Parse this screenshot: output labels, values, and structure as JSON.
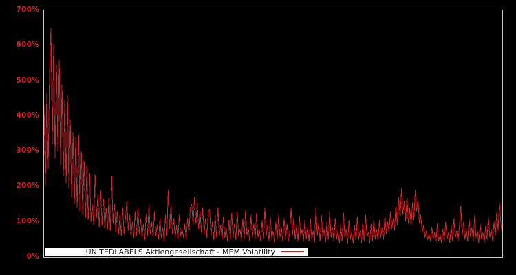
{
  "chart": {
    "colors": {
      "background": "#000000",
      "series": "#d4222b",
      "tick_label": "#d4222b",
      "axis_border": "#c9c9c9",
      "legend_bg": "#ffffff",
      "legend_text": "#141414"
    }
  },
  "chart_data": {
    "type": "line",
    "title": "",
    "xlabel": "",
    "ylabel": "",
    "grid": false,
    "legend_position": "bottom-inside",
    "ylim": [
      0,
      700
    ],
    "ytick_values": [
      0,
      100,
      200,
      300,
      400,
      500,
      600,
      700
    ],
    "ytick_labels": [
      "0%",
      "100%",
      "200%",
      "300%",
      "400%",
      "500%",
      "600%",
      "700%"
    ],
    "xtick_labels": [],
    "series": [
      {
        "name": "UNITEDLABELS Aktiengesellschaft - MEM Volatility",
        "unit": "%",
        "values": [
          430,
          205,
          465,
          250,
          520,
          650,
          320,
          605,
          280,
          545,
          300,
          560,
          260,
          490,
          230,
          445,
          210,
          460,
          195,
          390,
          170,
          355,
          150,
          340,
          140,
          350,
          130,
          300,
          120,
          275,
          110,
          260,
          105,
          240,
          100,
          150,
          90,
          235,
          110,
          175,
          85,
          190,
          90,
          165,
          80,
          140,
          80,
          170,
          75,
          230,
          95,
          150,
          70,
          130,
          65,
          120,
          60,
          140,
          65,
          110,
          160,
          75,
          120,
          60,
          100,
          55,
          130,
          60,
          140,
          65,
          110,
          55,
          95,
          50,
          120,
          60,
          150,
          65,
          100,
          55,
          130,
          60,
          90,
          50,
          110,
          55,
          85,
          45,
          120,
          60,
          190,
          80,
          150,
          65,
          110,
          55,
          90,
          50,
          120,
          60,
          80,
          55,
          95,
          50,
          110,
          70,
          140,
          150,
          90,
          170,
          95,
          155,
          80,
          130,
          70,
          140,
          65,
          110,
          55,
          130,
          135,
          60,
          100,
          50,
          120,
          55,
          140,
          60,
          90,
          50,
          115,
          55,
          85,
          45,
          105,
          50,
          125,
          55,
          95,
          50,
          130,
          60,
          80,
          45,
          110,
          50,
          135,
          60,
          85,
          45,
          120,
          55,
          95,
          50,
          125,
          55,
          80,
          45,
          105,
          50,
          140,
          60,
          90,
          45,
          115,
          50,
          75,
          40,
          100,
          50,
          120,
          55,
          85,
          45,
          110,
          50,
          95,
          45,
          70,
          140,
          60,
          115,
          50,
          90,
          45,
          120,
          55,
          80,
          45,
          105,
          50,
          85,
          45,
          110,
          50,
          75,
          40,
          140,
          60,
          95,
          45,
          120,
          55,
          80,
          40,
          100,
          50,
          130,
          55,
          85,
          45,
          110,
          50,
          75,
          40,
          95,
          45,
          125,
          55,
          80,
          40,
          105,
          50,
          70,
          40,
          90,
          45,
          115,
          50,
          75,
          40,
          100,
          45,
          120,
          55,
          70,
          40,
          95,
          45,
          110,
          50,
          80,
          45,
          105,
          55,
          85,
          50,
          120,
          65,
          100,
          70,
          130,
          80,
          110,
          75,
          150,
          90,
          170,
          110,
          195,
          120,
          160,
          100,
          175,
          95,
          140,
          85,
          155,
          105,
          190,
          130,
          165,
          95,
          120,
          70,
          90,
          55,
          75,
          50,
          65,
          45,
          85,
          50,
          70,
          40,
          95,
          45,
          65,
          40,
          80,
          45,
          100,
          50,
          70,
          40,
          90,
          45,
          110,
          55,
          75,
          45,
          90,
          145,
          60,
          100,
          50,
          80,
          45,
          110,
          55,
          85,
          45,
          120,
          55,
          75,
          40,
          95,
          50,
          70,
          40,
          90,
          50,
          115,
          55,
          80,
          45,
          100,
          60,
          130,
          75,
          155,
          95,
          60
        ]
      }
    ]
  }
}
